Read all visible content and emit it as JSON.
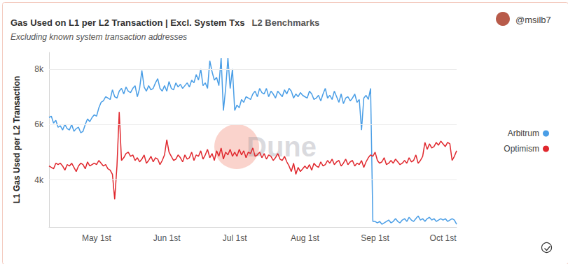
{
  "chart_data": {
    "type": "line",
    "title": "Gas Used on L1 per L2 Transaction | Excl. System Txs",
    "dashboard": "L2 Benchmarks",
    "subtitle": "Excluding known system transaction addresses",
    "author": "@msilb7",
    "watermark": "Dune",
    "ylabel": "L1 Gas Used per L2 Transaction",
    "categories": [
      null,
      null,
      null,
      null,
      null,
      null,
      null,
      null,
      null,
      null,
      null,
      null,
      null,
      null,
      null,
      null,
      null,
      null,
      null,
      null,
      null,
      "May 1st",
      null,
      null,
      null,
      null,
      null,
      null,
      null,
      null,
      null,
      null,
      null,
      null,
      null,
      null,
      null,
      null,
      null,
      null,
      null,
      null,
      null,
      null,
      null,
      null,
      null,
      null,
      null,
      null,
      null,
      null,
      "Jun 1st",
      null,
      null,
      null,
      null,
      null,
      null,
      null,
      null,
      null,
      null,
      null,
      null,
      null,
      null,
      null,
      null,
      null,
      null,
      null,
      null,
      null,
      null,
      null,
      null,
      null,
      null,
      null,
      null,
      null,
      "Jul 1st",
      null,
      null,
      null,
      null,
      null,
      null,
      null,
      null,
      null,
      null,
      null,
      null,
      null,
      null,
      null,
      null,
      null,
      null,
      null,
      null,
      null,
      null,
      null,
      null,
      null,
      null,
      null,
      null,
      null,
      null,
      "Aug 1st",
      null,
      null,
      null,
      null,
      null,
      null,
      null,
      null,
      null,
      null,
      null,
      null,
      null,
      null,
      null,
      null,
      null,
      null,
      null,
      null,
      null,
      null,
      null,
      null,
      null,
      null,
      null,
      null,
      null,
      null,
      "Sep 1st",
      null,
      null,
      null,
      null,
      null,
      null,
      null,
      null,
      null,
      null,
      null,
      null,
      null,
      null,
      null,
      null,
      null,
      null,
      null,
      null,
      null,
      null,
      null,
      null,
      null,
      null,
      null,
      null,
      null,
      "Oct 1st",
      null,
      null,
      null,
      null,
      null,
      null
    ],
    "series": [
      {
        "name": "Arbitrum",
        "color": "#4a9ee6",
        "values": [
          6250,
          6300,
          6050,
          6150,
          5900,
          5950,
          5800,
          6000,
          5850,
          5800,
          6000,
          5750,
          5850,
          5900,
          5700,
          5750,
          6000,
          6200,
          6100,
          6250,
          6350,
          6300,
          6600,
          6800,
          6850,
          7000,
          6950,
          6900,
          7250,
          7000,
          6950,
          7200,
          7300,
          7100,
          7350,
          7200,
          7150,
          7300,
          7400,
          7000,
          7300,
          7950,
          7350,
          7200,
          7400,
          7250,
          7300,
          7500,
          7650,
          7300,
          7200,
          7400,
          7200,
          7550,
          7300,
          7250,
          7500,
          7350,
          7450,
          7300,
          7400,
          7500,
          7350,
          7600,
          7500,
          7800,
          7600,
          8000,
          7400,
          7500,
          7300,
          8300,
          7900,
          7600,
          7700,
          7400,
          8400,
          6500,
          7300,
          8400,
          7300,
          8000,
          6500,
          6700,
          6600,
          6900,
          6800,
          7000,
          6950,
          6900,
          7100,
          7200,
          7000,
          7300,
          7150,
          7100,
          7300,
          7000,
          7200,
          7100,
          6950,
          7200,
          7100,
          7000,
          7250,
          7100,
          7300,
          7200,
          6950,
          7100,
          7000,
          7150,
          7050,
          7000,
          6950,
          7200,
          7100,
          6900,
          6950,
          7050,
          6850,
          7100,
          7300,
          6950,
          7050,
          6900,
          7200,
          7000,
          6800,
          7100,
          6750,
          6950,
          7000,
          6850,
          6950,
          7100,
          6800,
          6900,
          5800,
          6950,
          7050,
          6900,
          7300,
          2500,
          2500,
          2450,
          2500,
          2400,
          2450,
          2500,
          2550,
          2450,
          2500,
          2600,
          2500,
          2450,
          2550,
          2600,
          2500,
          2650,
          2550,
          2500,
          2600,
          2700,
          2550,
          2600,
          2500,
          2600,
          2650,
          2550,
          2600,
          2500,
          2550,
          2600,
          2550,
          2600,
          2500,
          2550,
          2600,
          2550,
          2400
        ]
      },
      {
        "name": "Optimism",
        "color": "#e0282e",
        "values": [
          4500,
          4450,
          4400,
          4600,
          4550,
          4600,
          4500,
          4350,
          4550,
          4500,
          4600,
          4450,
          4300,
          4500,
          4600,
          4550,
          4400,
          4650,
          4500,
          4550,
          4600,
          4550,
          4700,
          4600,
          4500,
          4550,
          4400,
          4350,
          4200,
          3300,
          4500,
          6450,
          4700,
          4800,
          4950,
          5000,
          4850,
          4900,
          4700,
          4800,
          4650,
          4750,
          4900,
          4600,
          4700,
          4850,
          4650,
          4800,
          4750,
          4550,
          4700,
          4900,
          5450,
          5000,
          4850,
          4700,
          4750,
          4900,
          4800,
          4650,
          4900,
          4750,
          4800,
          5000,
          4700,
          4900,
          4850,
          5050,
          4750,
          4900,
          5100,
          4800,
          4950,
          4700,
          5050,
          4850,
          5150,
          4750,
          5000,
          4900,
          5100,
          4850,
          5000,
          4850,
          5100,
          4900,
          5050,
          4800,
          5000,
          4950,
          5150,
          4850,
          4900,
          5000,
          4800,
          4950,
          4750,
          4900,
          4850,
          4700,
          4800,
          4950,
          4750,
          4700,
          4850,
          4650,
          4500,
          4300,
          4600,
          4200,
          4450,
          4300,
          4400,
          4500,
          4400,
          4550,
          4350,
          4600,
          4500,
          4450,
          4650,
          4500,
          4550,
          4700,
          4600,
          4750,
          4550,
          4650,
          4700,
          4500,
          4600,
          4750,
          4550,
          4650,
          4700,
          4500,
          4600,
          4550,
          4700,
          4450,
          4650,
          4800,
          4900,
          4850,
          5000,
          4700,
          4600,
          4650,
          4800,
          4550,
          4600,
          4700,
          4600,
          4750,
          4650,
          4550,
          4600,
          4700,
          4600,
          4800,
          4650,
          4700,
          4900,
          4600,
          4700,
          4850,
          5350,
          5100,
          5300,
          5150,
          5200,
          5350,
          5250,
          5400,
          5300,
          5200,
          5350,
          5300,
          4700,
          4850,
          5050
        ]
      }
    ],
    "ylim": [
      2300,
      8600
    ],
    "yticks": [
      {
        "value": 4000,
        "label": "4k"
      },
      {
        "value": 6000,
        "label": "6k"
      },
      {
        "value": 8000,
        "label": "8k"
      }
    ],
    "grid": true,
    "legend": "right"
  }
}
